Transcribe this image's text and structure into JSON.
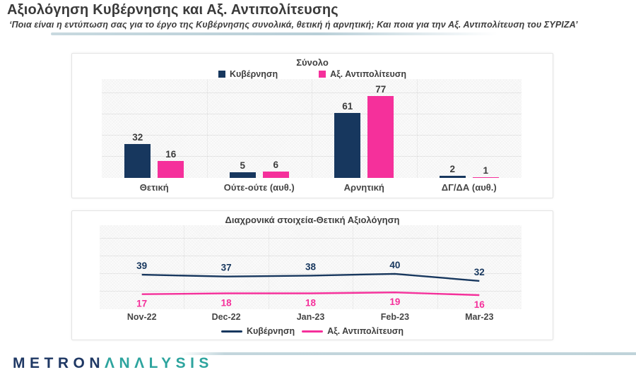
{
  "header": {
    "title": "Αξιολόγηση Κυβέρνησης και Αξ. Αντιπολίτευσης",
    "subtitle": "‘Ποια είναι η εντύπωση σας για το έργο της Κυβέρνησης συνολικά, θετική ή αρνητική; Και ποια για την Αξ. Αντιπολίτευση του ΣΥΡΙΖΑ’"
  },
  "colors": {
    "government": "#17375e",
    "opposition": "#f5309b",
    "logo_metron": "#1f3864",
    "logo_analysis": "#2da49e",
    "divider": "#bfd3d9"
  },
  "chart_data": [
    {
      "type": "bar",
      "title": "Σύνολο",
      "categories": [
        "Θετική",
        "Ούτε-ούτε (αυθ.)",
        "Αρνητική",
        "ΔΓ/ΔΑ (αυθ.)"
      ],
      "series": [
        {
          "name": "Κυβέρνηση",
          "color": "#17375e",
          "values": [
            32,
            5,
            61,
            2
          ]
        },
        {
          "name": "Αξ. Αντιπολίτευση",
          "color": "#f5309b",
          "values": [
            16,
            6,
            77,
            1
          ]
        }
      ],
      "ylim": [
        0,
        93
      ],
      "gridline_values": [
        20,
        40,
        60,
        80
      ],
      "grid": true,
      "legend_position": "top"
    },
    {
      "type": "line",
      "title": "Διαχρονικά στοιχεία-Θετική Αξιολόγηση",
      "categories": [
        "Nov-22",
        "Dec-22",
        "Jan-23",
        "Feb-23",
        "Mar-23"
      ],
      "series": [
        {
          "name": "Κυβέρνηση",
          "color": "#17375e",
          "values": [
            39,
            37,
            38,
            40,
            32
          ]
        },
        {
          "name": "Αξ. Αντιπολίτευση",
          "color": "#f5309b",
          "values": [
            17,
            18,
            18,
            19,
            16
          ]
        }
      ],
      "ylim": [
        0,
        95
      ],
      "gridline_values": [
        20,
        40,
        60,
        80
      ],
      "grid": true,
      "legend_position": "bottom"
    }
  ],
  "footer": {
    "logo_part1": "METRON",
    "logo_part2": "ΛNΛLYSIS"
  }
}
